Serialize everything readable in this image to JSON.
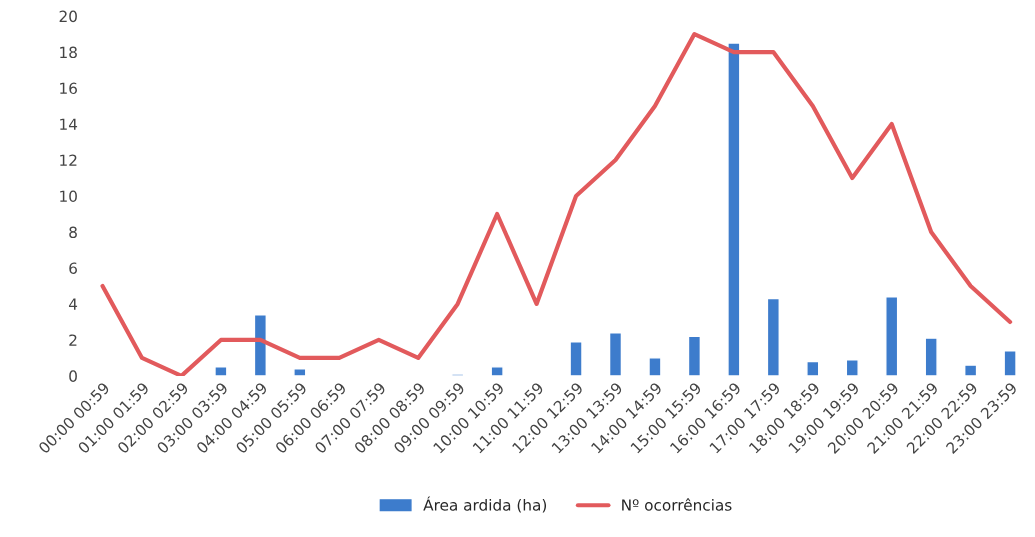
{
  "chart_data": {
    "type": "bar",
    "categories": [
      "00:00 00:59",
      "01:00 01:59",
      "02:00 02:59",
      "03:00 03:59",
      "04:00 04:59",
      "05:00 05:59",
      "06:00 06:59",
      "07:00 07:59",
      "08:00 08:59",
      "09:00 09:59",
      "10:00 10:59",
      "11:00 11:59",
      "12:00 12:59",
      "13:00 13:59",
      "14:00 14:59",
      "15:00 15:59",
      "16:00 16:59",
      "17:00 17:59",
      "18:00 18:59",
      "19:00 19:59",
      "20:00 20:59",
      "21:00 21:59",
      "22:00 22:59",
      "23:00 23:59"
    ],
    "series": [
      {
        "name": "Área ardida (ha)",
        "color": "#3d7ccc",
        "values": [
          null,
          null,
          null,
          0.5,
          3.4,
          0.4,
          null,
          null,
          null,
          0.1,
          0.5,
          null,
          1.9,
          2.4,
          1.0,
          2.2,
          18.5,
          4.3,
          0.8,
          0.9,
          4.4,
          2.1,
          0.6,
          1.4
        ]
      },
      {
        "name": "Nº ocorrências",
        "type": "line",
        "color": "#e25a5c",
        "values": [
          5,
          1,
          0,
          2,
          2,
          1,
          1,
          2,
          1,
          4,
          9,
          4,
          10,
          12,
          15,
          19,
          18,
          18,
          15,
          11,
          14,
          8,
          5,
          3
        ]
      }
    ],
    "ylim": [
      0,
      20
    ],
    "yticks": [
      0,
      2,
      4,
      6,
      8,
      10,
      12,
      14,
      16,
      18,
      20
    ],
    "grid": false,
    "legend": "bottom"
  }
}
